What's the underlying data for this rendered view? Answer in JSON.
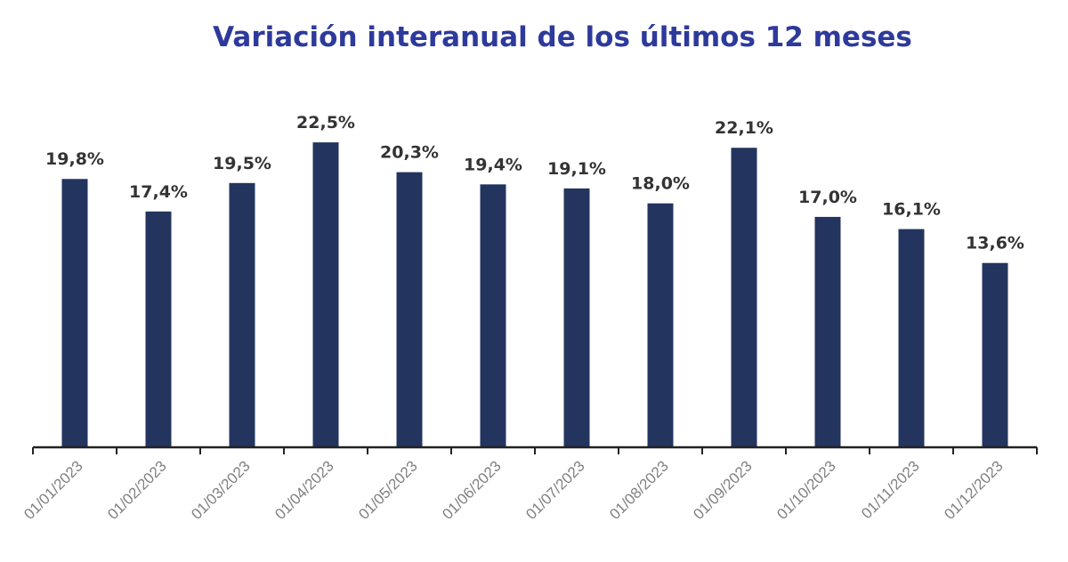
{
  "title": "Variación interanual de los últimos 12 meses",
  "colors": {
    "bar": "#23345f",
    "title": "#2e3a9b",
    "labels": "#333333",
    "ticks": "#808080"
  },
  "chart_data": {
    "type": "bar",
    "title": "Variación interanual de los últimos 12 meses",
    "categories": [
      "01/01/2023",
      "01/02/2023",
      "01/03/2023",
      "01/04/2023",
      "01/05/2023",
      "01/06/2023",
      "01/07/2023",
      "01/08/2023",
      "01/09/2023",
      "01/10/2023",
      "01/11/2023",
      "01/12/2023"
    ],
    "values": [
      19.8,
      17.4,
      19.5,
      22.5,
      20.3,
      19.4,
      19.1,
      18.0,
      22.1,
      17.0,
      16.1,
      13.6
    ],
    "data_labels": [
      "19,8%",
      "17,4%",
      "19,5%",
      "22,5%",
      "20,3%",
      "19,4%",
      "19,1%",
      "18,0%",
      "22,1%",
      "17,0%",
      "16,1%",
      "13,6%"
    ],
    "xlabel": "",
    "ylabel": "",
    "ylim": [
      0,
      23
    ],
    "grid": false,
    "legend": "none"
  }
}
